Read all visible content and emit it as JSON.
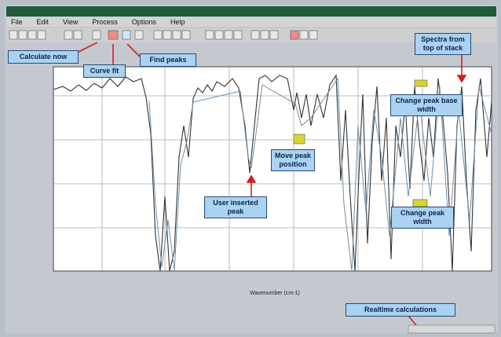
{
  "menu": [
    "File",
    "Edit",
    "View",
    "Process",
    "Options",
    "Help"
  ],
  "callouts": {
    "calculate_now": "Calculate now",
    "curve_fit": "Curve fit",
    "find_peaks": "Find peaks",
    "spectra_from_top": "Spectra from top of stack",
    "change_base_width": "Change peak base width",
    "move_peak": "Move peak position",
    "user_inserted_peak": "User inserted peak",
    "change_peak_width": "Change peak width",
    "realtime": "Realtime calculations"
  },
  "plot": {
    "x_axis_label": "Wavenumber (cm-1)"
  }
}
